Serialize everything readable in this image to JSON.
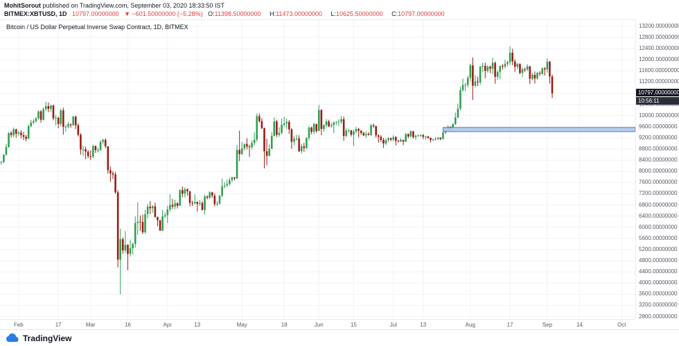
{
  "header": {
    "line1": {
      "user": "MohitSorout",
      "rest": " published on TradingView.com, September 03, 2020 18:33:50 IST"
    },
    "line2": {
      "symbol": "BITMEX:XBTUSD, 1D",
      "price": "10797.00000000",
      "change": "▼ −601.50000000 (−5.28%)",
      "ohlc": [
        {
          "label": "O:",
          "value": "11398.50000000"
        },
        {
          "label": "H:",
          "value": "11473.00000000"
        },
        {
          "label": "L:",
          "value": "10625.50000000"
        },
        {
          "label": "C:",
          "value": "10797.00000000"
        }
      ]
    }
  },
  "footer": {
    "brand": "TradingView"
  },
  "colors": {
    "up_candle": "#2f9e4f",
    "down_candle": "#971b12",
    "text_red": "#e03e3e",
    "grid": "#f0f2f6",
    "ray_fill": "#a9c6ea",
    "ray_stroke": "#3c6fd1",
    "badge_bg": "#131722",
    "countdown_bg": "#2a2e39",
    "brand_blue": "#2a7de1"
  },
  "chart_data": {
    "type": "candlestick",
    "title": "Bitcoin / US Dollar Perpetual Inverse Swap Contract, 1D, BITMEX",
    "symbol": "BITMEX:XBTUSD",
    "timeframe": "1D",
    "start_date": "2020-01-25",
    "last_price": 10797,
    "last_price_label": "10797.00000000",
    "countdown": "10:56:11",
    "y_axis": {
      "min": 2800,
      "max": 13200,
      "step": 400,
      "decimals": 8
    },
    "view": {
      "price_top": 13420,
      "price_bottom": 2690,
      "future_slots": 33
    },
    "horizontal_ray": {
      "price": 9500,
      "start_index": 178
    },
    "x_ticks": [
      {
        "label": "Feb",
        "index": 7
      },
      {
        "label": "17",
        "index": 23
      },
      {
        "label": "Mar",
        "index": 36
      },
      {
        "label": "16",
        "index": 51
      },
      {
        "label": "Apr",
        "index": 67
      },
      {
        "label": "13",
        "index": 79
      },
      {
        "label": "May",
        "index": 97
      },
      {
        "label": "18",
        "index": 114
      },
      {
        "label": "Jun",
        "index": 128
      },
      {
        "label": "15",
        "index": 142
      },
      {
        "label": "Jul",
        "index": 158
      },
      {
        "label": "13",
        "index": 170
      },
      {
        "label": "Aug",
        "index": 189
      },
      {
        "label": "17",
        "index": 205
      },
      {
        "label": "Sep",
        "index": 220
      },
      {
        "label": "14",
        "index": 233
      },
      {
        "label": "Oct",
        "index": 250
      }
    ],
    "candles": [
      [
        8320,
        8370,
        8240,
        8340
      ],
      [
        8340,
        8610,
        8290,
        8600
      ],
      [
        8600,
        8990,
        8560,
        8870
      ],
      [
        8870,
        9400,
        8850,
        9380
      ],
      [
        9380,
        9440,
        9210,
        9300
      ],
      [
        9300,
        9570,
        9230,
        9510
      ],
      [
        9510,
        9530,
        9210,
        9350
      ],
      [
        9350,
        9450,
        9280,
        9390
      ],
      [
        9390,
        9470,
        9180,
        9300
      ],
      [
        9300,
        9420,
        9120,
        9240
      ],
      [
        9240,
        9310,
        9080,
        9170
      ],
      [
        9170,
        9690,
        9160,
        9620
      ],
      [
        9620,
        9850,
        9580,
        9750
      ],
      [
        9750,
        9870,
        9690,
        9800
      ],
      [
        9800,
        9950,
        9740,
        9900
      ],
      [
        9900,
        10180,
        9850,
        10150
      ],
      [
        10150,
        10200,
        9750,
        9850
      ],
      [
        9850,
        10290,
        9820,
        10230
      ],
      [
        10230,
        10500,
        10170,
        10340
      ],
      [
        10340,
        10470,
        10120,
        10240
      ],
      [
        10240,
        10390,
        10130,
        10360
      ],
      [
        10360,
        10400,
        9830,
        9900
      ],
      [
        9900,
        10030,
        9650,
        9920
      ],
      [
        9920,
        9960,
        9550,
        9700
      ],
      [
        9700,
        10250,
        9620,
        10190
      ],
      [
        10190,
        10280,
        9320,
        9600
      ],
      [
        9600,
        9680,
        9430,
        9600
      ],
      [
        9600,
        9770,
        9540,
        9690
      ],
      [
        9690,
        9720,
        9560,
        9660
      ],
      [
        9660,
        9990,
        9620,
        9960
      ],
      [
        9960,
        10000,
        9520,
        9650
      ],
      [
        9650,
        9720,
        9250,
        9310
      ],
      [
        9310,
        9370,
        8600,
        8790
      ],
      [
        8790,
        8930,
        8550,
        8790
      ],
      [
        8790,
        8890,
        8440,
        8710
      ],
      [
        8710,
        8760,
        8470,
        8550
      ],
      [
        8550,
        8750,
        8410,
        8530
      ],
      [
        8530,
        8960,
        8460,
        8910
      ],
      [
        8910,
        8930,
        8660,
        8760
      ],
      [
        8760,
        8850,
        8680,
        8760
      ],
      [
        8760,
        9120,
        8740,
        9060
      ],
      [
        9060,
        9170,
        8970,
        9130
      ],
      [
        9130,
        9180,
        8830,
        8900
      ],
      [
        8900,
        8900,
        7920,
        8040
      ],
      [
        8040,
        8170,
        7630,
        7930
      ],
      [
        7930,
        8010,
        7730,
        7890
      ],
      [
        7890,
        7980,
        7200,
        7250
      ],
      [
        7250,
        7330,
        4560,
        4840
      ],
      [
        4840,
        5950,
        3600,
        5570
      ],
      [
        5570,
        5640,
        5050,
        5170
      ],
      [
        5170,
        5860,
        5080,
        5370
      ],
      [
        5370,
        5390,
        4460,
        5050
      ],
      [
        5050,
        5560,
        4950,
        5250
      ],
      [
        5250,
        5450,
        5020,
        5400
      ],
      [
        5400,
        6390,
        5270,
        6150
      ],
      [
        6150,
        6900,
        5730,
        6200
      ],
      [
        6200,
        6420,
        5870,
        6190
      ],
      [
        6190,
        6450,
        5760,
        5820
      ],
      [
        5820,
        6620,
        5770,
        6470
      ],
      [
        6470,
        6840,
        6310,
        6740
      ],
      [
        6740,
        6940,
        6470,
        6680
      ],
      [
        6680,
        6790,
        6520,
        6750
      ],
      [
        6750,
        6880,
        6340,
        6370
      ],
      [
        6370,
        6380,
        6040,
        6250
      ],
      [
        6250,
        6270,
        5870,
        5880
      ],
      [
        5880,
        6620,
        5860,
        6390
      ],
      [
        6390,
        6530,
        6330,
        6430
      ],
      [
        6430,
        6770,
        6150,
        6640
      ],
      [
        6640,
        7190,
        6550,
        6800
      ],
      [
        6800,
        7020,
        6650,
        6740
      ],
      [
        6740,
        6980,
        6640,
        6860
      ],
      [
        6860,
        6900,
        6670,
        6770
      ],
      [
        6770,
        7360,
        6760,
        7330
      ],
      [
        7330,
        7460,
        7080,
        7200
      ],
      [
        7200,
        7430,
        7070,
        7360
      ],
      [
        7360,
        7390,
        7130,
        7290
      ],
      [
        7290,
        7300,
        6750,
        6870
      ],
      [
        6870,
        6950,
        6760,
        6860
      ],
      [
        6860,
        7180,
        6810,
        6910
      ],
      [
        6910,
        6920,
        6570,
        6840
      ],
      [
        6840,
        6980,
        6770,
        6870
      ],
      [
        6870,
        6940,
        6600,
        6620
      ],
      [
        6620,
        7170,
        6450,
        7100
      ],
      [
        7100,
        7140,
        7000,
        7060
      ],
      [
        7060,
        7290,
        7010,
        7250
      ],
      [
        7250,
        7270,
        7050,
        7130
      ],
      [
        7130,
        7220,
        6750,
        6830
      ],
      [
        6830,
        6940,
        6770,
        6850
      ],
      [
        6850,
        7160,
        6810,
        7130
      ],
      [
        7130,
        7740,
        7080,
        7470
      ],
      [
        7470,
        7620,
        7390,
        7500
      ],
      [
        7500,
        7700,
        7440,
        7550
      ],
      [
        7550,
        7770,
        7490,
        7690
      ],
      [
        7690,
        7810,
        7620,
        7790
      ],
      [
        7790,
        7800,
        7680,
        7750
      ],
      [
        7750,
        8950,
        7730,
        8770
      ],
      [
        8770,
        9460,
        8370,
        8620
      ],
      [
        8620,
        9060,
        8590,
        8830
      ],
      [
        8830,
        9010,
        8750,
        8980
      ],
      [
        8980,
        9190,
        8790,
        8890
      ],
      [
        8890,
        8960,
        8520,
        8870
      ],
      [
        8870,
        9110,
        8790,
        9020
      ],
      [
        9020,
        9400,
        8930,
        9140
      ],
      [
        9140,
        10070,
        9060,
        9980
      ],
      [
        9980,
        10080,
        9740,
        9800
      ],
      [
        9800,
        9910,
        9520,
        9550
      ],
      [
        9550,
        9570,
        8110,
        8720
      ],
      [
        8720,
        9170,
        8220,
        8560
      ],
      [
        8560,
        8970,
        8540,
        8810
      ],
      [
        8810,
        9400,
        8800,
        9270
      ],
      [
        9270,
        9940,
        9260,
        9790
      ],
      [
        9790,
        9850,
        9230,
        9310
      ],
      [
        9310,
        9580,
        9240,
        9380
      ],
      [
        9380,
        9890,
        9330,
        9670
      ],
      [
        9670,
        9950,
        9600,
        9720
      ],
      [
        9720,
        9890,
        9510,
        9770
      ],
      [
        9770,
        9840,
        9340,
        9510
      ],
      [
        9510,
        9550,
        8810,
        9060
      ],
      [
        9060,
        9270,
        8940,
        9170
      ],
      [
        9170,
        9310,
        9100,
        9180
      ],
      [
        9180,
        9300,
        8700,
        8720
      ],
      [
        8720,
        8980,
        8640,
        8900
      ],
      [
        8900,
        9020,
        8700,
        8840
      ],
      [
        8840,
        9230,
        8810,
        9200
      ],
      [
        9200,
        9620,
        9110,
        9570
      ],
      [
        9570,
        9600,
        9330,
        9420
      ],
      [
        9420,
        9740,
        9330,
        9700
      ],
      [
        9700,
        9700,
        9380,
        9450
      ],
      [
        9450,
        10380,
        9450,
        10200
      ],
      [
        10200,
        10230,
        9300,
        9520
      ],
      [
        9520,
        9690,
        9420,
        9660
      ],
      [
        9660,
        9880,
        9580,
        9790
      ],
      [
        9790,
        9850,
        9580,
        9620
      ],
      [
        9620,
        9740,
        9570,
        9660
      ],
      [
        9660,
        9790,
        9380,
        9750
      ],
      [
        9750,
        9800,
        9660,
        9770
      ],
      [
        9770,
        9870,
        9630,
        9780
      ],
      [
        9780,
        9980,
        9700,
        9870
      ],
      [
        9870,
        9960,
        9100,
        9270
      ],
      [
        9270,
        9550,
        9230,
        9460
      ],
      [
        9460,
        9530,
        9380,
        9470
      ],
      [
        9470,
        9480,
        9250,
        9320
      ],
      [
        9320,
        9490,
        8910,
        9430
      ],
      [
        9430,
        9590,
        9370,
        9520
      ],
      [
        9520,
        9560,
        9230,
        9460
      ],
      [
        9460,
        9480,
        9310,
        9380
      ],
      [
        9380,
        9420,
        9260,
        9290
      ],
      [
        9290,
        9430,
        9200,
        9340
      ],
      [
        9340,
        9410,
        9290,
        9300
      ],
      [
        9300,
        9700,
        9280,
        9650
      ],
      [
        9650,
        9710,
        9560,
        9620
      ],
      [
        9620,
        9640,
        9210,
        9290
      ],
      [
        9290,
        9320,
        9030,
        9240
      ],
      [
        9240,
        9300,
        9050,
        9130
      ],
      [
        9130,
        9200,
        8840,
        9000
      ],
      [
        9000,
        9180,
        8940,
        9120
      ],
      [
        9120,
        9230,
        9050,
        9190
      ],
      [
        9190,
        9210,
        9080,
        9140
      ],
      [
        9140,
        9300,
        9080,
        9230
      ],
      [
        9230,
        9260,
        8930,
        9090
      ],
      [
        9090,
        9130,
        9040,
        9070
      ],
      [
        9070,
        9190,
        9050,
        9130
      ],
      [
        9130,
        9140,
        8940,
        9070
      ],
      [
        9070,
        9370,
        9050,
        9340
      ],
      [
        9340,
        9360,
        9190,
        9250
      ],
      [
        9250,
        9470,
        9230,
        9440
      ],
      [
        9440,
        9450,
        9170,
        9230
      ],
      [
        9230,
        9310,
        9130,
        9280
      ],
      [
        9280,
        9320,
        9250,
        9290
      ],
      [
        9290,
        9340,
        9230,
        9300
      ],
      [
        9300,
        9340,
        9150,
        9240
      ],
      [
        9240,
        9280,
        9130,
        9250
      ],
      [
        9250,
        9280,
        9170,
        9200
      ],
      [
        9200,
        9220,
        9040,
        9130
      ],
      [
        9130,
        9180,
        9090,
        9150
      ],
      [
        9150,
        9220,
        9110,
        9170
      ],
      [
        9170,
        9230,
        9120,
        9210
      ],
      [
        9210,
        9220,
        9120,
        9160
      ],
      [
        9160,
        9440,
        9150,
        9390
      ],
      [
        9390,
        9560,
        9330,
        9520
      ],
      [
        9520,
        9660,
        9460,
        9590
      ],
      [
        9590,
        9620,
        9430,
        9550
      ],
      [
        9550,
        9730,
        9520,
        9700
      ],
      [
        9700,
        10110,
        9660,
        9930
      ],
      [
        9930,
        10430,
        9910,
        10250
      ],
      [
        10250,
        11030,
        10190,
        10910
      ],
      [
        10910,
        11330,
        10850,
        11100
      ],
      [
        11100,
        11170,
        10870,
        11100
      ],
      [
        11100,
        11430,
        11010,
        11350
      ],
      [
        11350,
        11860,
        11230,
        11800
      ],
      [
        11800,
        12080,
        10560,
        11070
      ],
      [
        11070,
        11450,
        11010,
        11220
      ],
      [
        11220,
        11390,
        11050,
        11190
      ],
      [
        11190,
        11780,
        11100,
        11750
      ],
      [
        11750,
        11900,
        11570,
        11780
      ],
      [
        11780,
        11900,
        11330,
        11600
      ],
      [
        11600,
        11810,
        11540,
        11750
      ],
      [
        11750,
        11790,
        11520,
        11680
      ],
      [
        11680,
        12070,
        11480,
        11890
      ],
      [
        11890,
        11940,
        11140,
        11390
      ],
      [
        11390,
        11620,
        11270,
        11560
      ],
      [
        11560,
        11790,
        11300,
        11780
      ],
      [
        11780,
        11850,
        11650,
        11760
      ],
      [
        11760,
        11990,
        11690,
        11850
      ],
      [
        11850,
        11960,
        11760,
        11910
      ],
      [
        11910,
        12480,
        11810,
        12250
      ],
      [
        12250,
        12390,
        11810,
        11940
      ],
      [
        11940,
        12020,
        11570,
        11750
      ],
      [
        11750,
        11880,
        11660,
        11850
      ],
      [
        11850,
        11870,
        11480,
        11530
      ],
      [
        11530,
        11720,
        11380,
        11660
      ],
      [
        11660,
        11720,
        11560,
        11650
      ],
      [
        11650,
        11840,
        11600,
        11760
      ],
      [
        11760,
        11790,
        11130,
        11320
      ],
      [
        11320,
        11530,
        11260,
        11460
      ],
      [
        11460,
        11580,
        11150,
        11330
      ],
      [
        11330,
        11560,
        11280,
        11530
      ],
      [
        11530,
        11590,
        11420,
        11500
      ],
      [
        11500,
        11730,
        11450,
        11690
      ],
      [
        11690,
        11740,
        11430,
        11650
      ],
      [
        11650,
        12050,
        11540,
        11930
      ],
      [
        11930,
        11960,
        11150,
        11400
      ],
      [
        11398.5,
        11473,
        10625.5,
        10797
      ]
    ]
  }
}
